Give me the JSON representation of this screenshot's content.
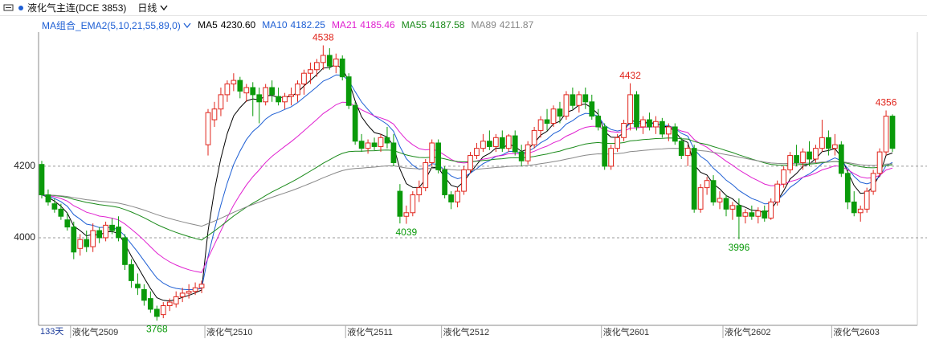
{
  "header": {
    "symbol": "液化气主连(DCE 3853)",
    "period": "日线"
  },
  "chart_data": {
    "type": "candlestick",
    "indicator": "MA组合_EMA2(5,10,21,55,89,0)",
    "series": [
      {
        "name": "MA5",
        "color": "#000000",
        "value": 4230.6,
        "value_label": "4230.60"
      },
      {
        "name": "MA10",
        "color": "#1e5fd4",
        "value": 4182.25,
        "value_label": "4182.25"
      },
      {
        "name": "MA21",
        "color": "#e020d0",
        "value": 4185.46,
        "value_label": "4185.46"
      },
      {
        "name": "MA55",
        "color": "#1a8a1a",
        "value": 4187.58,
        "value_label": "4187.58"
      },
      {
        "name": "MA89",
        "color": "#888888",
        "value": 4211.87,
        "value_label": "4211.87"
      }
    ],
    "days_label": "133天",
    "categories": [
      null,
      null,
      null,
      null,
      null,
      "液化气2509",
      null,
      null,
      null,
      null,
      null,
      null,
      null,
      null,
      null,
      null,
      null,
      null,
      null,
      null,
      null,
      null,
      null,
      null,
      null,
      null,
      "液化气2510",
      null,
      null,
      null,
      null,
      null,
      null,
      null,
      null,
      null,
      null,
      null,
      null,
      null,
      null,
      null,
      null,
      null,
      null,
      null,
      null,
      null,
      "液化气2511",
      null,
      null,
      null,
      null,
      null,
      null,
      null,
      null,
      null,
      null,
      null,
      null,
      null,
      null,
      "液化气2512",
      null,
      null,
      null,
      null,
      null,
      null,
      null,
      null,
      null,
      null,
      null,
      null,
      null,
      null,
      null,
      null,
      null,
      null,
      null,
      null,
      null,
      null,
      null,
      null,
      "液化气2601",
      null,
      null,
      null,
      null,
      null,
      null,
      null,
      null,
      null,
      null,
      null,
      null,
      null,
      null,
      null,
      null,
      null,
      null,
      "液化气2602",
      null,
      null,
      null,
      null,
      null,
      null,
      null,
      null,
      null,
      null,
      null,
      null,
      null,
      null,
      null,
      null,
      "液化气2603",
      null,
      null,
      null,
      null,
      null,
      null,
      null,
      null,
      null
    ],
    "open": [
      4205,
      4120,
      4095,
      4080,
      4050,
      4030,
      3970,
      3995,
      3975,
      4020,
      4000,
      4035,
      4030,
      4000,
      3925,
      3870,
      3855,
      3830,
      3800,
      3785,
      3810,
      3815,
      3835,
      3845,
      3850,
      3860,
      4260,
      4330,
      4360,
      4400,
      4430,
      4440,
      4405,
      4420,
      4400,
      4380,
      4420,
      4395,
      4380,
      4395,
      4400,
      4430,
      4460,
      4470,
      4490,
      4510,
      4480,
      4500,
      4450,
      4370,
      4270,
      4250,
      4265,
      4255,
      4280,
      4265,
      4130,
      4060,
      4070,
      4120,
      4140,
      4210,
      4265,
      4190,
      4120,
      4100,
      4130,
      4190,
      4230,
      4250,
      4270,
      4255,
      4280,
      4250,
      4285,
      4240,
      4215,
      4260,
      4300,
      4330,
      4320,
      4360,
      4340,
      4400,
      4370,
      4400,
      4380,
      4340,
      4310,
      4200,
      4250,
      4280,
      4320,
      4400,
      4310,
      4330,
      4310,
      4325,
      4290,
      4310,
      4270,
      4230,
      4250,
      4080,
      4140,
      4160,
      4100,
      4110,
      4080,
      4090,
      4060,
      4070,
      4060,
      4075,
      4055,
      4100,
      4150,
      4190,
      4230,
      4210,
      4240,
      4220,
      4250,
      4280,
      4250,
      4260,
      4180,
      4100,
      4070,
      4080,
      4130,
      4180,
      4240,
      4340
    ],
    "high": [
      4215,
      4135,
      4110,
      4095,
      4070,
      4045,
      4010,
      4020,
      4040,
      4030,
      4045,
      4055,
      4060,
      4010,
      3940,
      3900,
      3870,
      3850,
      3810,
      3820,
      3830,
      3850,
      3860,
      3870,
      3875,
      3880,
      4360,
      4380,
      4420,
      4440,
      4460,
      4450,
      4430,
      4435,
      4420,
      4430,
      4440,
      4420,
      4405,
      4420,
      4440,
      4470,
      4490,
      4500,
      4538,
      4530,
      4515,
      4510,
      4460,
      4380,
      4290,
      4275,
      4280,
      4290,
      4310,
      4290,
      4150,
      4090,
      4130,
      4160,
      4220,
      4275,
      4275,
      4200,
      4130,
      4140,
      4200,
      4240,
      4265,
      4290,
      4300,
      4290,
      4300,
      4290,
      4300,
      4260,
      4270,
      4310,
      4340,
      4360,
      4370,
      4380,
      4410,
      4420,
      4410,
      4420,
      4400,
      4360,
      4320,
      4260,
      4290,
      4330,
      4432,
      4410,
      4340,
      4350,
      4340,
      4335,
      4320,
      4320,
      4280,
      4260,
      4260,
      4150,
      4170,
      4175,
      4130,
      4120,
      4100,
      4110,
      4080,
      4090,
      4085,
      4090,
      4110,
      4160,
      4200,
      4240,
      4260,
      4250,
      4270,
      4260,
      4330,
      4300,
      4290,
      4270,
      4190,
      4130,
      4090,
      4140,
      4190,
      4250,
      4356,
      4345
    ],
    "low": [
      4110,
      4090,
      4070,
      4050,
      4020,
      3940,
      3950,
      3960,
      3960,
      3985,
      3990,
      4010,
      3990,
      3910,
      3860,
      3840,
      3810,
      3790,
      3768,
      3775,
      3795,
      3805,
      3820,
      3830,
      3840,
      3845,
      4230,
      4310,
      4340,
      4380,
      4410,
      4390,
      4380,
      4340,
      4320,
      4370,
      4380,
      4370,
      4360,
      4370,
      4380,
      4400,
      4430,
      4450,
      4470,
      4470,
      4460,
      4440,
      4360,
      4260,
      4240,
      4235,
      4245,
      4240,
      4250,
      4200,
      4040,
      4039,
      4060,
      4100,
      4130,
      4200,
      4180,
      4110,
      4080,
      4085,
      4120,
      4180,
      4220,
      4240,
      4245,
      4240,
      4240,
      4240,
      4230,
      4200,
      4205,
      4250,
      4280,
      4300,
      4310,
      4320,
      4330,
      4360,
      4350,
      4360,
      4330,
      4300,
      4190,
      4190,
      4240,
      4270,
      4300,
      4300,
      4290,
      4300,
      4290,
      4280,
      4270,
      4260,
      4220,
      4200,
      4070,
      4070,
      4120,
      4090,
      4080,
      4060,
      4050,
      3996,
      4040,
      4050,
      4040,
      4045,
      4050,
      4090,
      4140,
      4180,
      4200,
      4190,
      4200,
      4210,
      4240,
      4230,
      4230,
      4170,
      4080,
      4060,
      4045,
      4070,
      4120,
      4170,
      4230,
      4240
    ],
    "close": [
      4120,
      4100,
      4080,
      4060,
      4030,
      3960,
      3995,
      3975,
      4020,
      4000,
      4035,
      4020,
      4000,
      3925,
      3880,
      3860,
      3825,
      3800,
      3780,
      3810,
      3820,
      3835,
      3845,
      3850,
      3860,
      3870,
      4350,
      4360,
      4400,
      4430,
      4440,
      4410,
      4420,
      4400,
      4380,
      4420,
      4400,
      4380,
      4395,
      4400,
      4430,
      4460,
      4470,
      4490,
      4510,
      4480,
      4500,
      4450,
      4370,
      4270,
      4250,
      4265,
      4255,
      4280,
      4265,
      4210,
      4060,
      4070,
      4120,
      4140,
      4210,
      4265,
      4190,
      4120,
      4100,
      4130,
      4190,
      4230,
      4250,
      4270,
      4255,
      4280,
      4250,
      4285,
      4240,
      4215,
      4260,
      4300,
      4330,
      4320,
      4360,
      4340,
      4400,
      4370,
      4400,
      4380,
      4340,
      4310,
      4200,
      4250,
      4280,
      4320,
      4400,
      4310,
      4330,
      4310,
      4325,
      4290,
      4310,
      4270,
      4230,
      4250,
      4080,
      4140,
      4160,
      4100,
      4110,
      4080,
      4090,
      4060,
      4070,
      4060,
      4075,
      4055,
      4100,
      4150,
      4190,
      4230,
      4210,
      4240,
      4220,
      4250,
      4280,
      4250,
      4260,
      4180,
      4100,
      4070,
      4080,
      4130,
      4180,
      4240,
      4340,
      4250
    ],
    "high_labels": [
      44,
      92,
      132
    ],
    "low_labels": [
      18,
      57,
      109
    ],
    "ylim": [
      3755,
      4575
    ],
    "yticks": [
      4000,
      4200
    ],
    "grid": true,
    "up_color": "#e0241b",
    "down_color": "#0a9a0a"
  }
}
